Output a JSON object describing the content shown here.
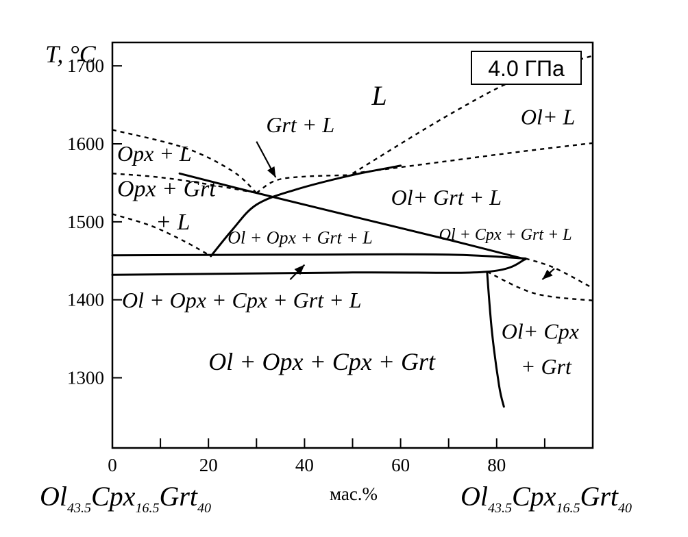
{
  "chart_data": {
    "type": "phase_diagram",
    "pressure_label": "4.0 ГПа",
    "ylabel": "T, °C",
    "xlabel": "мас.%",
    "x_range": [
      0,
      100
    ],
    "y_range": [
      1210,
      1730
    ],
    "x_ticks": [
      0,
      20,
      40,
      60,
      80
    ],
    "y_ticks": [
      1300,
      1400,
      1500,
      1600,
      1700
    ],
    "composition_left": {
      "a": "Ol",
      "a_sub": "43.5",
      "b": "Cpx",
      "b_sub": "16.5",
      "c": "Grt",
      "c_sub": "40"
    },
    "composition_right": {
      "a": "Ol",
      "a_sub": "43.5",
      "b": "Cpx",
      "b_sub": "16.5",
      "c": "Grt",
      "c_sub": "40"
    },
    "regions": [
      {
        "label": "L",
        "x": 54,
        "y": 1650,
        "size": 40
      },
      {
        "label": "Ol+ L",
        "x": 85,
        "y": 1625,
        "size": 32
      },
      {
        "label": "Grt + L",
        "x": 32,
        "y": 1615,
        "size": 32
      },
      {
        "label": "Opx + L",
        "x": 1,
        "y": 1578,
        "size": 32
      },
      {
        "label": "Opx + Grt",
        "x": 1,
        "y": 1533,
        "size": 34
      },
      {
        "label": "+ L",
        "x": 9,
        "y": 1490,
        "size": 34
      },
      {
        "label": "Ol+ Grt + L",
        "x": 58,
        "y": 1522,
        "size": 32
      },
      {
        "label": "Ol + Opx + Grt + L",
        "x": 24,
        "y": 1472,
        "size": 26
      },
      {
        "label": "Ol + Cpx + Grt + L",
        "x": 68,
        "y": 1477,
        "size": 24
      },
      {
        "label": "Ol + Opx + Cpx + Grt + L",
        "x": 2,
        "y": 1390,
        "size": 32
      },
      {
        "label": "Ol+ Cpx",
        "x": 81,
        "y": 1350,
        "size": 32
      },
      {
        "label": "+ Grt",
        "x": 85,
        "y": 1305,
        "size": 32
      },
      {
        "label": "Ol + Opx + Cpx + Grt",
        "x": 20,
        "y": 1310,
        "size": 36
      }
    ],
    "solid_boundaries": [
      {
        "name": "opx-out",
        "points": [
          [
            14,
            1562
          ],
          [
            30,
            1537
          ],
          [
            50,
            1507
          ],
          [
            70,
            1477
          ],
          [
            86,
            1452
          ]
        ]
      },
      {
        "name": "grt-in",
        "points": [
          [
            20.5,
            1456
          ],
          [
            25,
            1490
          ],
          [
            30,
            1522
          ],
          [
            38,
            1541
          ],
          [
            50,
            1560
          ],
          [
            60,
            1572
          ]
        ]
      },
      {
        "name": "upper-solidus",
        "points": [
          [
            0,
            1457
          ],
          [
            40,
            1458
          ],
          [
            70,
            1458
          ],
          [
            86,
            1453
          ]
        ]
      },
      {
        "name": "lower-solidus",
        "points": [
          [
            0,
            1432
          ],
          [
            50,
            1435
          ],
          [
            78,
            1436
          ],
          [
            86,
            1452
          ]
        ]
      },
      {
        "name": "opx-cpx-vertical",
        "points": [
          [
            78,
            1436
          ],
          [
            79,
            1360
          ],
          [
            80.5,
            1290
          ],
          [
            81.5,
            1263
          ]
        ]
      }
    ],
    "dashed_boundaries": [
      {
        "name": "upper-left-curve",
        "points": [
          [
            0,
            1618
          ],
          [
            15,
            1595
          ],
          [
            25,
            1565
          ],
          [
            30,
            1537
          ]
        ]
      },
      {
        "name": "left-mid-curve",
        "points": [
          [
            0,
            1562
          ],
          [
            10,
            1557
          ],
          [
            20,
            1548
          ],
          [
            30,
            1537
          ]
        ]
      },
      {
        "name": "left-lower-curve",
        "points": [
          [
            0,
            1510
          ],
          [
            8,
            1495
          ],
          [
            15,
            1475
          ],
          [
            20.5,
            1456
          ]
        ]
      },
      {
        "name": "grt-l-top",
        "points": [
          [
            30,
            1537
          ],
          [
            34,
            1553
          ],
          [
            40,
            1558
          ],
          [
            50,
            1560
          ]
        ]
      },
      {
        "name": "ol-l-upper",
        "points": [
          [
            50,
            1562
          ],
          [
            70,
            1637
          ],
          [
            85,
            1685
          ],
          [
            100,
            1713
          ]
        ]
      },
      {
        "name": "ol-l-lower",
        "points": [
          [
            50,
            1562
          ],
          [
            70,
            1578
          ],
          [
            85,
            1590
          ],
          [
            100,
            1601
          ]
        ]
      },
      {
        "name": "right-lower-a",
        "points": [
          [
            86,
            1453
          ],
          [
            92,
            1441
          ],
          [
            100,
            1415
          ]
        ]
      },
      {
        "name": "right-lower-b",
        "points": [
          [
            78,
            1436
          ],
          [
            88,
            1408
          ],
          [
            100,
            1399
          ]
        ]
      }
    ],
    "arrows": [
      {
        "from": [
          30,
          1603
        ],
        "to": [
          34,
          1557
        ]
      },
      {
        "from": [
          92,
          1440
        ],
        "to": [
          89.5,
          1426
        ]
      },
      {
        "from": [
          37,
          1426
        ],
        "to": [
          40,
          1445
        ]
      }
    ],
    "grid": false
  }
}
